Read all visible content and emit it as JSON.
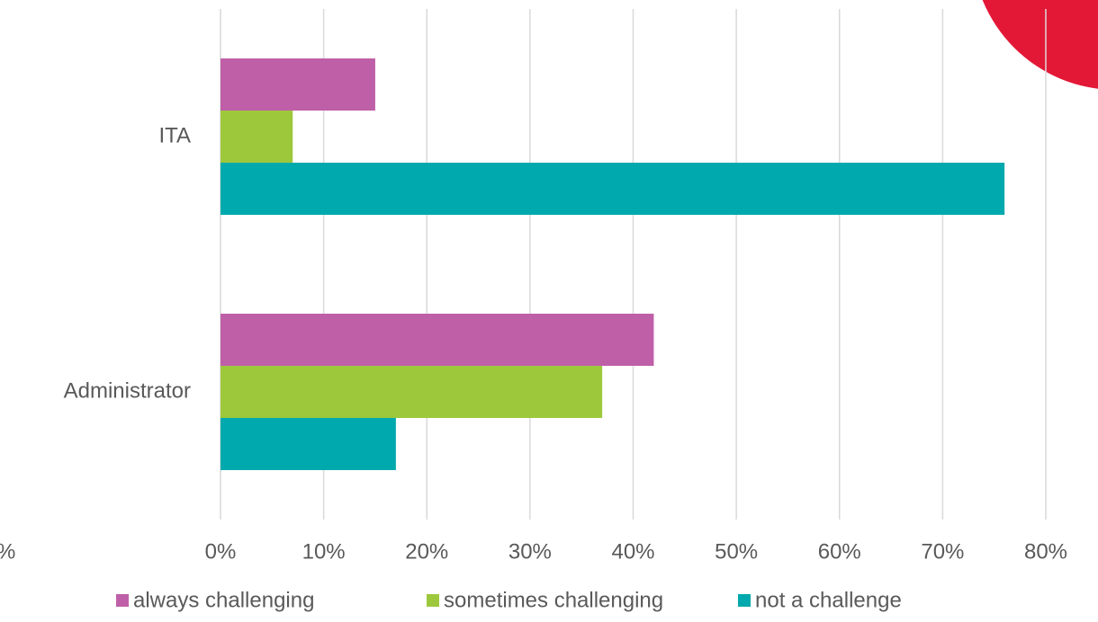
{
  "chart_data": {
    "type": "hbar",
    "categories": [
      "ITA",
      "Administrator"
    ],
    "series": [
      {
        "name": "always challenging",
        "color": "#bf5fa8",
        "values": [
          15,
          42
        ]
      },
      {
        "name": "sometimes challenging",
        "color": "#9dc83c",
        "values": [
          7,
          37
        ]
      },
      {
        "name": "not a challenge",
        "color": "#00a9ad",
        "values": [
          76,
          17
        ]
      }
    ],
    "xlim": [
      0,
      80
    ],
    "xticks": [
      {
        "value": 0,
        "label": "0%"
      },
      {
        "value": 10,
        "label": "10%"
      },
      {
        "value": 20,
        "label": "20%"
      },
      {
        "value": 30,
        "label": "30%"
      },
      {
        "value": 40,
        "label": "40%"
      },
      {
        "value": 50,
        "label": "50%"
      },
      {
        "value": 60,
        "label": "60%"
      },
      {
        "value": 70,
        "label": "70%"
      },
      {
        "value": 80,
        "label": "80%"
      }
    ],
    "grid": true,
    "legend": "bottom"
  },
  "cropped_text": "%"
}
